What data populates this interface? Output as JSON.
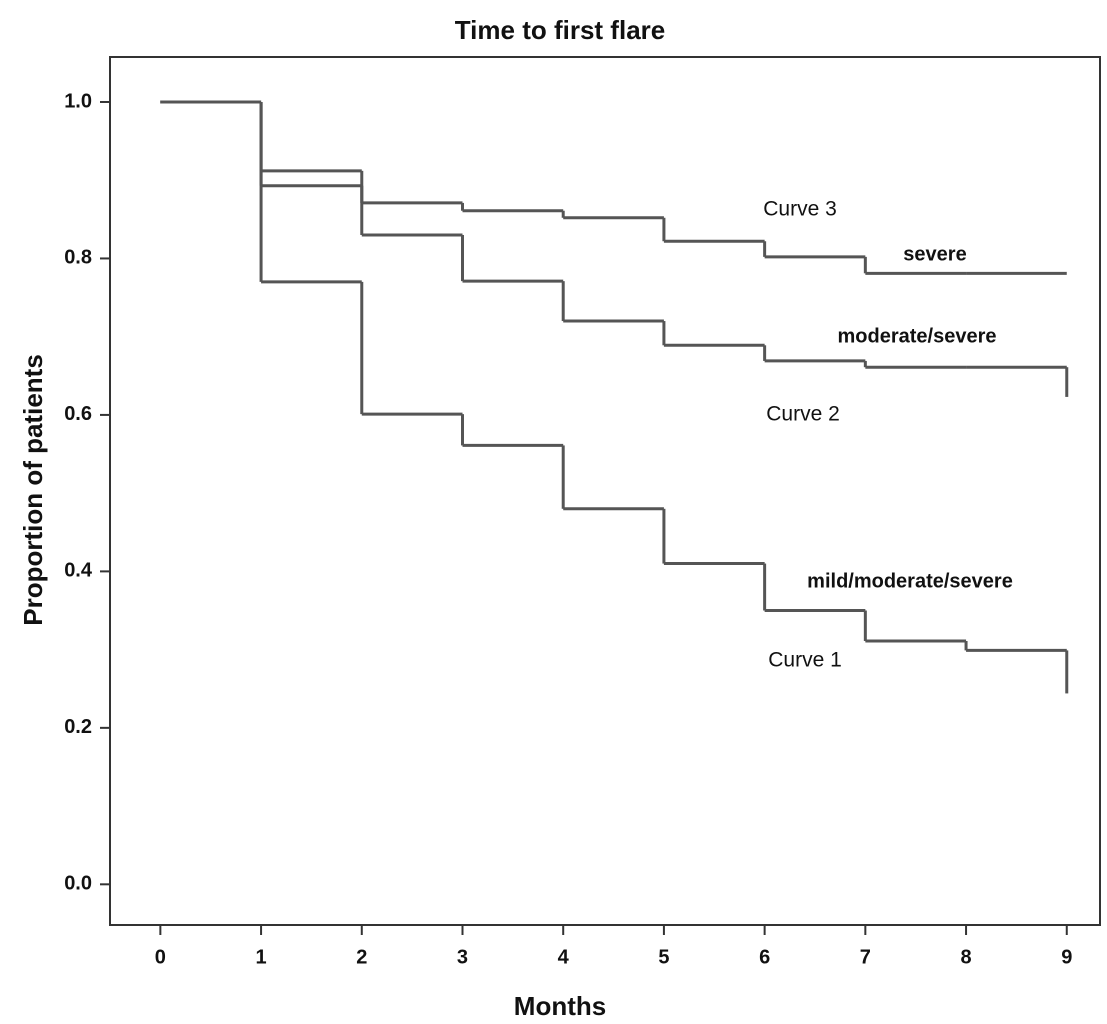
{
  "chart_data": {
    "type": "step",
    "title": "Time to first flare",
    "x_label": "Months",
    "y_label": "Proportion of patients",
    "x": [
      0,
      1,
      2,
      3,
      4,
      5,
      6,
      7,
      8,
      9,
      9
    ],
    "series": [
      {
        "name": "mild/moderate/severe",
        "color": "#555555",
        "values": [
          1.0,
          0.77,
          0.601,
          0.561,
          0.48,
          0.41,
          0.35,
          0.311,
          0.299,
          0.299,
          0.244
        ]
      },
      {
        "name": "moderate/severe",
        "color": "#555555",
        "values": [
          1.0,
          0.893,
          0.83,
          0.771,
          0.72,
          0.689,
          0.669,
          0.661,
          0.661,
          0.661,
          0.623
        ]
      },
      {
        "name": "severe",
        "color": "#555555",
        "values": [
          1.0,
          0.912,
          0.871,
          0.861,
          0.852,
          0.822,
          0.802,
          0.781,
          0.781,
          0.781,
          0.781
        ]
      }
    ],
    "annotations": [
      "Curve 1",
      "Curve 2",
      "Curve 3"
    ],
    "xlim": [
      -0.5,
      9.33
    ],
    "ylim": [
      -0.052,
      1.0575
    ],
    "xticks": [
      0,
      1,
      2,
      3,
      4,
      5,
      6,
      7,
      8,
      9
    ],
    "yticks": [
      {
        "value": 0,
        "label": "0.0"
      },
      0.2,
      0.4,
      0.6,
      0.8,
      {
        "value": 1,
        "label": "1.0"
      }
    ]
  }
}
